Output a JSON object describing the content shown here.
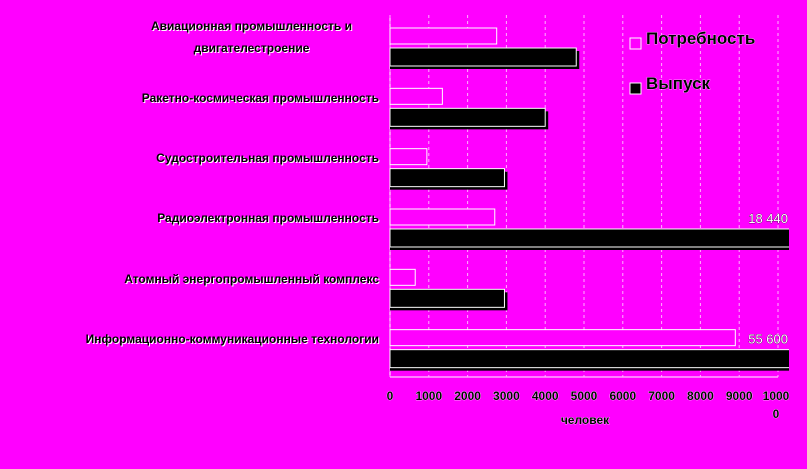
{
  "chart_data": {
    "type": "bar",
    "orientation": "horizontal",
    "x_label": "человек",
    "categories": [
      "Авиационная промышленность и двигателестроение",
      "Ракетно-космическая промышленность",
      "Судостроительная промышленность",
      "Радиоэлектронная промышленность",
      "Атомный энергопромышленный комплекс",
      "Информационно-коммуникационные технологии"
    ],
    "series": [
      {
        "name": "Потребность",
        "color": "#ff00ff",
        "values": [
          2750,
          1350,
          950,
          2700,
          650,
          8900
        ]
      },
      {
        "name": "Выпуск",
        "color": "#000000",
        "values": [
          4800,
          4000,
          2950,
          18440,
          2950,
          55600
        ],
        "value_labels": [
          null,
          null,
          null,
          "18 440",
          null,
          "55 600"
        ]
      }
    ],
    "xlim": [
      0,
      10000
    ],
    "xticks": [
      0,
      1000,
      2000,
      3000,
      4000,
      5000,
      6000,
      7000,
      8000,
      9000,
      10000
    ],
    "grid": true,
    "legend": "top-right"
  }
}
